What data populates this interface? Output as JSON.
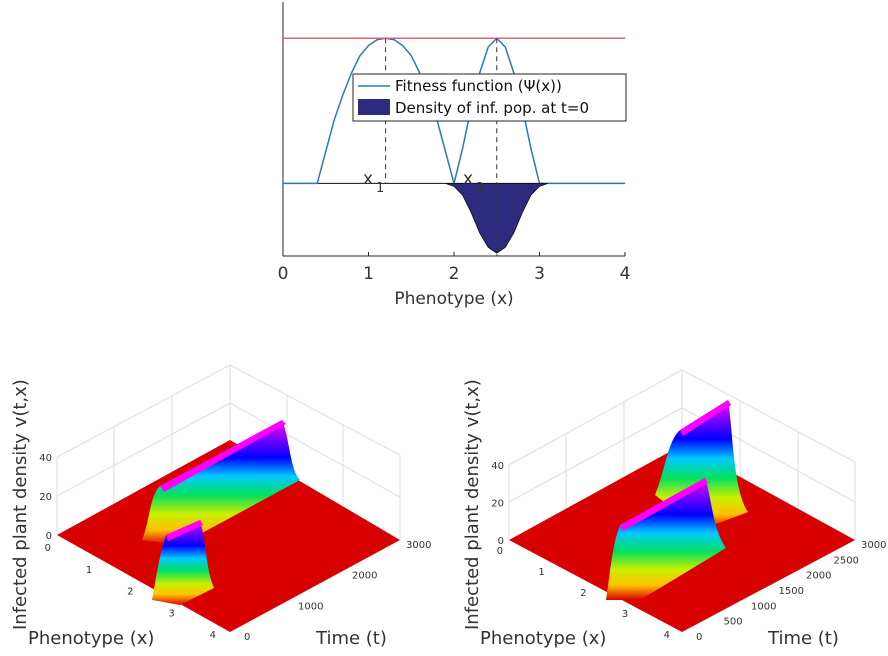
{
  "chart_data": [
    {
      "type": "line",
      "xlabel": "Phenotype (x)",
      "xlim": [
        0,
        4
      ],
      "xticks": [
        "0",
        "1",
        "2",
        "3",
        "4"
      ],
      "legend": {
        "placement": "center",
        "entries": [
          "Fitness function (Ψ(x))",
          "Density of inf. pop. at t=0"
        ]
      },
      "annotations": {
        "x1": {
          "base": "x",
          "sub": "1",
          "at": 1.2
        },
        "x2": {
          "base": "x",
          "sub": "2",
          "at": 2.5
        }
      },
      "series": [
        {
          "name": "Fitness function (Ψ(x))",
          "color": "#2a7ab8",
          "x": [
            0,
            0.4,
            0.5,
            0.6,
            0.7,
            0.8,
            0.9,
            1.0,
            1.1,
            1.2,
            1.3,
            1.4,
            1.5,
            1.6,
            1.7,
            1.8,
            1.9,
            2.0,
            2.1,
            2.2,
            2.3,
            2.4,
            2.5,
            2.6,
            2.7,
            2.8,
            2.9,
            3.0,
            4.0
          ],
          "y": [
            0,
            0,
            0.22,
            0.44,
            0.61,
            0.76,
            0.88,
            0.95,
            0.99,
            1.0,
            0.99,
            0.95,
            0.88,
            0.76,
            0.61,
            0.44,
            0.22,
            0,
            0.24,
            0.52,
            0.76,
            0.94,
            1.0,
            0.94,
            0.76,
            0.52,
            0.24,
            0,
            0
          ]
        },
        {
          "name": "Density of inf. pop. at t=0",
          "color": "#2e2a80",
          "type": "area",
          "x": [
            1.9,
            2.0,
            2.1,
            2.2,
            2.3,
            2.4,
            2.5,
            2.6,
            2.7,
            2.8,
            2.9,
            3.0,
            3.1
          ],
          "y": [
            0,
            -0.02,
            -0.08,
            -0.2,
            -0.34,
            -0.44,
            -0.48,
            -0.44,
            -0.34,
            -0.2,
            -0.08,
            -0.02,
            0
          ]
        },
        {
          "name": "",
          "color": "#e06070",
          "x": [
            0,
            4
          ],
          "y": [
            1.0,
            1.0
          ]
        }
      ],
      "ylim": [
        -0.5,
        1.25
      ]
    },
    {
      "type": "surface",
      "zlabel": "Infected plant density v(t,x)",
      "xlabel": "Phenotype (x)",
      "ylabel": "Time (t)",
      "xlim": [
        0,
        4
      ],
      "xticks": [
        "0",
        "1",
        "2",
        "3",
        "4"
      ],
      "ylim": [
        0,
        3000
      ],
      "yticks": [
        "0",
        "1000",
        "2000",
        "3000"
      ],
      "zlim": [
        0,
        40
      ],
      "zticks": [
        "0",
        "20",
        "40"
      ],
      "ridges": [
        {
          "x": 1.2,
          "width": 0.25,
          "t_start": 600,
          "t_end": 3000,
          "height": 40
        },
        {
          "x": 2.5,
          "width": 0.25,
          "t_start": 0,
          "t_end": 800,
          "height": 30
        }
      ]
    },
    {
      "type": "surface",
      "zlabel": "Infected plant density v(t,x)",
      "xlabel": "Phenotype (x)",
      "ylabel": "Time (t)",
      "xlim": [
        0,
        4
      ],
      "xticks": [
        "0",
        "1",
        "2",
        "3",
        "4"
      ],
      "ylim": [
        0,
        3000
      ],
      "yticks": [
        "0",
        "500",
        "1000",
        "1500",
        "2000",
        "2500",
        "3000"
      ],
      "zlim": [
        0,
        40
      ],
      "zticks": [
        "0",
        "20",
        "40"
      ],
      "ridges": [
        {
          "x": 1.2,
          "width": 0.25,
          "t_start": 1900,
          "t_end": 3000,
          "height": 42
        },
        {
          "x": 2.5,
          "width": 0.25,
          "t_start": 0,
          "t_end": 1800,
          "height": 32
        }
      ]
    }
  ]
}
